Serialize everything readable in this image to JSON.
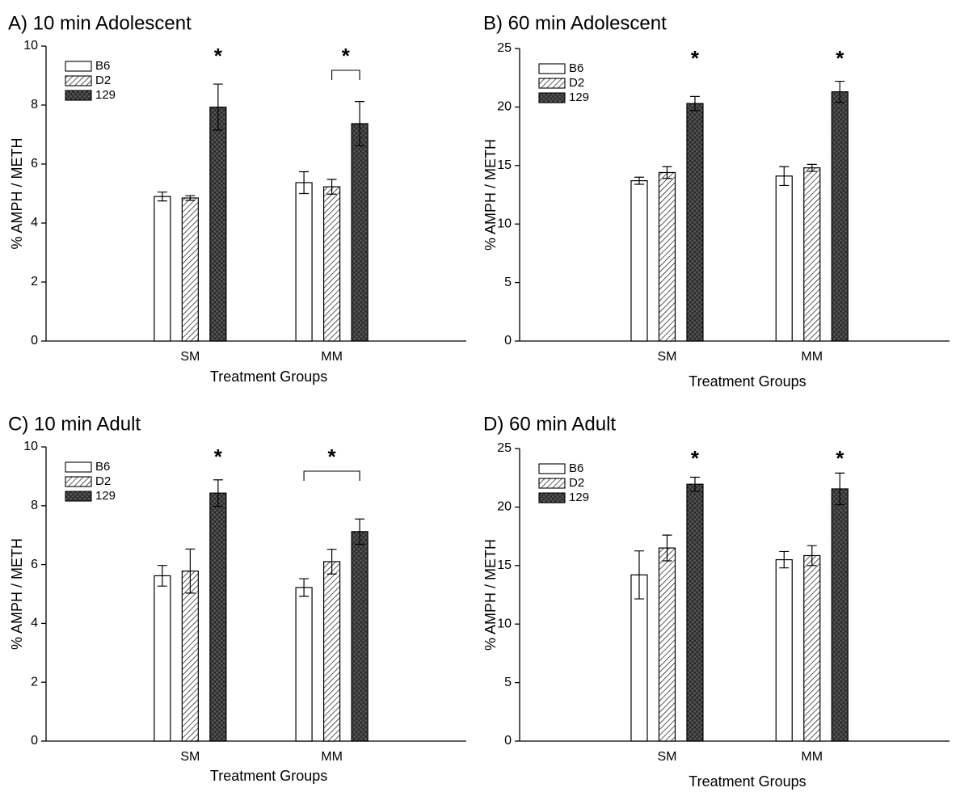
{
  "chart_data": [
    {
      "type": "bar",
      "title": "A) 10 min Adolescent",
      "x_label": "Treatment Groups",
      "y_label": "% AMPH / METH",
      "categories": [
        "SM",
        "MM"
      ],
      "ylim": [
        0,
        10
      ],
      "yticks": [
        0,
        2,
        4,
        6,
        8,
        10
      ],
      "legend": "upper left",
      "series": [
        {
          "name": "B6",
          "pattern": "none",
          "values": [
            4.9,
            5.37
          ],
          "errors": [
            0.15,
            0.37
          ]
        },
        {
          "name": "D2",
          "pattern": "hatch",
          "values": [
            4.85,
            5.23
          ],
          "errors": [
            0.08,
            0.25
          ]
        },
        {
          "name": "129",
          "pattern": "crosshatch",
          "values": [
            7.93,
            7.37
          ],
          "errors": [
            0.78,
            0.75
          ]
        }
      ],
      "annotations": [
        {
          "text": "*",
          "category": 0,
          "from": 2,
          "to": 2
        },
        {
          "text": "*",
          "category": 1,
          "from": 1,
          "to": 2
        }
      ]
    },
    {
      "type": "bar",
      "title": "B) 60 min Adolescent",
      "x_label": "Treatment Groups",
      "y_label": "% AMPH / METH",
      "categories": [
        "SM",
        "MM"
      ],
      "ylim": [
        0,
        25
      ],
      "yticks": [
        0,
        5,
        10,
        15,
        20,
        25
      ],
      "legend": "upper left",
      "series": [
        {
          "name": "B6",
          "pattern": "none",
          "values": [
            13.7,
            14.1
          ],
          "errors": [
            0.3,
            0.8
          ]
        },
        {
          "name": "D2",
          "pattern": "hatch",
          "values": [
            14.4,
            14.8
          ],
          "errors": [
            0.5,
            0.3
          ]
        },
        {
          "name": "129",
          "pattern": "crosshatch",
          "values": [
            20.3,
            21.3
          ],
          "errors": [
            0.6,
            0.9
          ]
        }
      ],
      "annotations": [
        {
          "text": "*",
          "category": 0,
          "from": 2,
          "to": 2
        },
        {
          "text": "*",
          "category": 1,
          "from": 2,
          "to": 2
        }
      ]
    },
    {
      "type": "bar",
      "title": "C) 10 min Adult",
      "x_label": "Treatment Groups",
      "y_label": "% AMPH / METH",
      "categories": [
        "SM",
        "MM"
      ],
      "ylim": [
        0,
        10
      ],
      "yticks": [
        0,
        2,
        4,
        6,
        8,
        10
      ],
      "legend": "upper left",
      "series": [
        {
          "name": "B6",
          "pattern": "none",
          "values": [
            5.62,
            5.22
          ],
          "errors": [
            0.35,
            0.3
          ]
        },
        {
          "name": "D2",
          "pattern": "hatch",
          "values": [
            5.78,
            6.1
          ],
          "errors": [
            0.75,
            0.42
          ]
        },
        {
          "name": "129",
          "pattern": "crosshatch",
          "values": [
            8.43,
            7.12
          ],
          "errors": [
            0.45,
            0.43
          ]
        }
      ],
      "annotations": [
        {
          "text": "*",
          "category": 0,
          "from": 2,
          "to": 2
        },
        {
          "text": "*",
          "category": 1,
          "from": 0,
          "to": 2
        }
      ]
    },
    {
      "type": "bar",
      "title": "D) 60 min Adult",
      "x_label": "Treatment Groups",
      "y_label": "% AMPH / METH",
      "categories": [
        "SM",
        "MM"
      ],
      "ylim": [
        0,
        25
      ],
      "yticks": [
        0,
        5,
        10,
        15,
        20,
        25
      ],
      "legend": "upper left",
      "series": [
        {
          "name": "B6",
          "pattern": "none",
          "values": [
            14.2,
            15.5
          ],
          "errors": [
            2.05,
            0.7
          ]
        },
        {
          "name": "D2",
          "pattern": "hatch",
          "values": [
            16.5,
            15.85
          ],
          "errors": [
            1.1,
            0.85
          ]
        },
        {
          "name": "129",
          "pattern": "crosshatch",
          "values": [
            21.95,
            21.55
          ],
          "errors": [
            0.6,
            1.35
          ]
        }
      ],
      "annotations": [
        {
          "text": "*",
          "category": 0,
          "from": 2,
          "to": 2
        },
        {
          "text": "*",
          "category": 1,
          "from": 2,
          "to": 2
        }
      ]
    }
  ]
}
